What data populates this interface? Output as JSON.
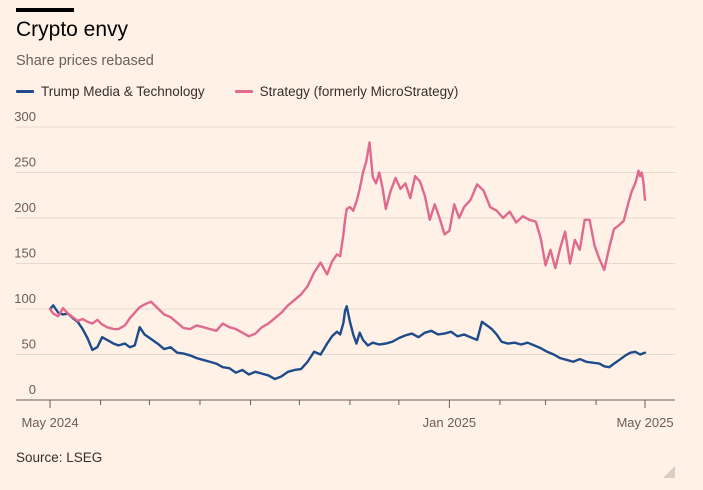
{
  "header": {
    "title": "Crypto envy",
    "subtitle": "Share prices rebased"
  },
  "source": "Source: LSEG",
  "chart_data": {
    "type": "line",
    "title": "Crypto envy",
    "subtitle": "Share prices rebased",
    "xlabel": "",
    "ylabel": "",
    "ylim": [
      0,
      300
    ],
    "yticks": [
      0,
      50,
      100,
      150,
      200,
      250,
      300
    ],
    "xlim": [
      "2024-05-01",
      "2025-05-01"
    ],
    "xtick_labels": [
      {
        "date": "2024-05-01",
        "label": "May 2024"
      },
      {
        "date": "2025-01-01",
        "label": "Jan 2025"
      },
      {
        "date": "2025-05-01",
        "label": "May 2025"
      }
    ],
    "grid": true,
    "legend_position": "top-left",
    "series": [
      {
        "name": "Trump Media & Technology",
        "color": "#1E4C8A",
        "points": [
          [
            "2024-05-01",
            100
          ],
          [
            "2024-05-03",
            104
          ],
          [
            "2024-05-06",
            96
          ],
          [
            "2024-05-09",
            94
          ],
          [
            "2024-05-12",
            95
          ],
          [
            "2024-05-15",
            90
          ],
          [
            "2024-05-18",
            86
          ],
          [
            "2024-05-21",
            78
          ],
          [
            "2024-05-24",
            68
          ],
          [
            "2024-05-27",
            55
          ],
          [
            "2024-05-30",
            58
          ],
          [
            "2024-06-02",
            69
          ],
          [
            "2024-06-05",
            66
          ],
          [
            "2024-06-09",
            62
          ],
          [
            "2024-06-12",
            60
          ],
          [
            "2024-06-16",
            62
          ],
          [
            "2024-06-19",
            58
          ],
          [
            "2024-06-22",
            60
          ],
          [
            "2024-06-25",
            80
          ],
          [
            "2024-06-28",
            72
          ],
          [
            "2024-07-02",
            67
          ],
          [
            "2024-07-06",
            62
          ],
          [
            "2024-07-10",
            56
          ],
          [
            "2024-07-14",
            58
          ],
          [
            "2024-07-18",
            52
          ],
          [
            "2024-07-22",
            51
          ],
          [
            "2024-07-26",
            49
          ],
          [
            "2024-07-30",
            46
          ],
          [
            "2024-08-03",
            44
          ],
          [
            "2024-08-07",
            42
          ],
          [
            "2024-08-11",
            40
          ],
          [
            "2024-08-15",
            36
          ],
          [
            "2024-08-19",
            35
          ],
          [
            "2024-08-23",
            30
          ],
          [
            "2024-08-27",
            33
          ],
          [
            "2024-08-31",
            28
          ],
          [
            "2024-09-04",
            31
          ],
          [
            "2024-09-08",
            29
          ],
          [
            "2024-09-12",
            27
          ],
          [
            "2024-09-16",
            23
          ],
          [
            "2024-09-20",
            26
          ],
          [
            "2024-09-24",
            31
          ],
          [
            "2024-09-28",
            33
          ],
          [
            "2024-10-02",
            34
          ],
          [
            "2024-10-06",
            42
          ],
          [
            "2024-10-10",
            53
          ],
          [
            "2024-10-14",
            50
          ],
          [
            "2024-10-18",
            62
          ],
          [
            "2024-10-21",
            70
          ],
          [
            "2024-10-24",
            75
          ],
          [
            "2024-10-26",
            72
          ],
          [
            "2024-10-28",
            85
          ],
          [
            "2024-10-29",
            98
          ],
          [
            "2024-10-30",
            103
          ],
          [
            "2024-11-01",
            86
          ],
          [
            "2024-11-03",
            72
          ],
          [
            "2024-11-05",
            62
          ],
          [
            "2024-11-07",
            74
          ],
          [
            "2024-11-09",
            66
          ],
          [
            "2024-11-12",
            60
          ],
          [
            "2024-11-15",
            63
          ],
          [
            "2024-11-19",
            61
          ],
          [
            "2024-11-23",
            62
          ],
          [
            "2024-11-27",
            64
          ],
          [
            "2024-12-01",
            68
          ],
          [
            "2024-12-05",
            71
          ],
          [
            "2024-12-09",
            73
          ],
          [
            "2024-12-13",
            69
          ],
          [
            "2024-12-17",
            74
          ],
          [
            "2024-12-21",
            76
          ],
          [
            "2024-12-25",
            72
          ],
          [
            "2024-12-29",
            73
          ],
          [
            "2025-01-02",
            75
          ],
          [
            "2025-01-06",
            70
          ],
          [
            "2025-01-10",
            72
          ],
          [
            "2025-01-14",
            69
          ],
          [
            "2025-01-18",
            66
          ],
          [
            "2025-01-21",
            86
          ],
          [
            "2025-01-24",
            82
          ],
          [
            "2025-01-27",
            78
          ],
          [
            "2025-01-30",
            72
          ],
          [
            "2025-02-02",
            64
          ],
          [
            "2025-02-06",
            62
          ],
          [
            "2025-02-10",
            63
          ],
          [
            "2025-02-14",
            61
          ],
          [
            "2025-02-18",
            63
          ],
          [
            "2025-02-22",
            60
          ],
          [
            "2025-02-26",
            57
          ],
          [
            "2025-03-02",
            53
          ],
          [
            "2025-03-06",
            50
          ],
          [
            "2025-03-10",
            46
          ],
          [
            "2025-03-14",
            44
          ],
          [
            "2025-03-18",
            42
          ],
          [
            "2025-03-22",
            45
          ],
          [
            "2025-03-26",
            42
          ],
          [
            "2025-03-30",
            41
          ],
          [
            "2025-04-03",
            40
          ],
          [
            "2025-04-06",
            37
          ],
          [
            "2025-04-09",
            36
          ],
          [
            "2025-04-12",
            40
          ],
          [
            "2025-04-16",
            45
          ],
          [
            "2025-04-19",
            49
          ],
          [
            "2025-04-22",
            52
          ],
          [
            "2025-04-25",
            53
          ],
          [
            "2025-04-28",
            50
          ],
          [
            "2025-05-01",
            52
          ]
        ]
      },
      {
        "name": "Strategy (formerly MicroStrategy)",
        "color": "#E0698E",
        "points": [
          [
            "2024-05-01",
            100
          ],
          [
            "2024-05-03",
            95
          ],
          [
            "2024-05-06",
            92
          ],
          [
            "2024-05-09",
            101
          ],
          [
            "2024-05-12",
            95
          ],
          [
            "2024-05-15",
            91
          ],
          [
            "2024-05-18",
            87
          ],
          [
            "2024-05-21",
            89
          ],
          [
            "2024-05-24",
            86
          ],
          [
            "2024-05-27",
            84
          ],
          [
            "2024-05-30",
            88
          ],
          [
            "2024-06-02",
            83
          ],
          [
            "2024-06-05",
            80
          ],
          [
            "2024-06-09",
            78
          ],
          [
            "2024-06-12",
            78
          ],
          [
            "2024-06-16",
            82
          ],
          [
            "2024-06-19",
            90
          ],
          [
            "2024-06-22",
            96
          ],
          [
            "2024-06-25",
            102
          ],
          [
            "2024-06-28",
            105
          ],
          [
            "2024-07-02",
            108
          ],
          [
            "2024-07-06",
            101
          ],
          [
            "2024-07-10",
            94
          ],
          [
            "2024-07-14",
            91
          ],
          [
            "2024-07-18",
            85
          ],
          [
            "2024-07-22",
            79
          ],
          [
            "2024-07-26",
            78
          ],
          [
            "2024-07-30",
            82
          ],
          [
            "2024-08-03",
            80
          ],
          [
            "2024-08-07",
            78
          ],
          [
            "2024-08-11",
            76
          ],
          [
            "2024-08-15",
            84
          ],
          [
            "2024-08-19",
            80
          ],
          [
            "2024-08-23",
            78
          ],
          [
            "2024-08-27",
            74
          ],
          [
            "2024-08-31",
            70
          ],
          [
            "2024-09-04",
            73
          ],
          [
            "2024-09-08",
            80
          ],
          [
            "2024-09-12",
            84
          ],
          [
            "2024-09-16",
            90
          ],
          [
            "2024-09-20",
            96
          ],
          [
            "2024-09-24",
            104
          ],
          [
            "2024-09-28",
            110
          ],
          [
            "2024-10-02",
            116
          ],
          [
            "2024-10-06",
            125
          ],
          [
            "2024-10-10",
            140
          ],
          [
            "2024-10-14",
            151
          ],
          [
            "2024-10-18",
            138
          ],
          [
            "2024-10-21",
            152
          ],
          [
            "2024-10-24",
            160
          ],
          [
            "2024-10-26",
            158
          ],
          [
            "2024-10-28",
            182
          ],
          [
            "2024-10-29",
            198
          ],
          [
            "2024-10-30",
            210
          ],
          [
            "2024-11-01",
            212
          ],
          [
            "2024-11-03",
            208
          ],
          [
            "2024-11-05",
            218
          ],
          [
            "2024-11-07",
            232
          ],
          [
            "2024-11-09",
            250
          ],
          [
            "2024-11-11",
            262
          ],
          [
            "2024-11-13",
            283
          ],
          [
            "2024-11-15",
            245
          ],
          [
            "2024-11-17",
            238
          ],
          [
            "2024-11-19",
            250
          ],
          [
            "2024-11-21",
            233
          ],
          [
            "2024-11-23",
            210
          ],
          [
            "2024-11-26",
            230
          ],
          [
            "2024-11-29",
            244
          ],
          [
            "2024-12-02",
            232
          ],
          [
            "2024-12-05",
            238
          ],
          [
            "2024-12-08",
            222
          ],
          [
            "2024-12-11",
            246
          ],
          [
            "2024-12-14",
            240
          ],
          [
            "2024-12-17",
            224
          ],
          [
            "2024-12-20",
            198
          ],
          [
            "2024-12-23",
            215
          ],
          [
            "2024-12-26",
            200
          ],
          [
            "2024-12-29",
            182
          ],
          [
            "2025-01-01",
            186
          ],
          [
            "2025-01-04",
            215
          ],
          [
            "2025-01-07",
            200
          ],
          [
            "2025-01-10",
            212
          ],
          [
            "2025-01-14",
            220
          ],
          [
            "2025-01-18",
            237
          ],
          [
            "2025-01-22",
            230
          ],
          [
            "2025-01-26",
            212
          ],
          [
            "2025-01-30",
            208
          ],
          [
            "2025-02-03",
            200
          ],
          [
            "2025-02-07",
            207
          ],
          [
            "2025-02-11",
            195
          ],
          [
            "2025-02-15",
            202
          ],
          [
            "2025-02-19",
            198
          ],
          [
            "2025-02-23",
            196
          ],
          [
            "2025-02-26",
            178
          ],
          [
            "2025-03-01",
            148
          ],
          [
            "2025-03-04",
            165
          ],
          [
            "2025-03-07",
            145
          ],
          [
            "2025-03-10",
            167
          ],
          [
            "2025-03-13",
            185
          ],
          [
            "2025-03-16",
            150
          ],
          [
            "2025-03-19",
            176
          ],
          [
            "2025-03-22",
            165
          ],
          [
            "2025-03-25",
            198
          ],
          [
            "2025-03-28",
            198
          ],
          [
            "2025-03-31",
            170
          ],
          [
            "2025-04-03",
            155
          ],
          [
            "2025-04-06",
            143
          ],
          [
            "2025-04-09",
            167
          ],
          [
            "2025-04-12",
            188
          ],
          [
            "2025-04-15",
            192
          ],
          [
            "2025-04-18",
            197
          ],
          [
            "2025-04-21",
            218
          ],
          [
            "2025-04-23",
            230
          ],
          [
            "2025-04-25",
            238
          ],
          [
            "2025-04-26",
            244
          ],
          [
            "2025-04-27",
            252
          ],
          [
            "2025-04-28",
            246
          ],
          [
            "2025-04-29",
            250
          ],
          [
            "2025-04-30",
            240
          ],
          [
            "2025-05-01",
            220
          ]
        ]
      }
    ]
  }
}
